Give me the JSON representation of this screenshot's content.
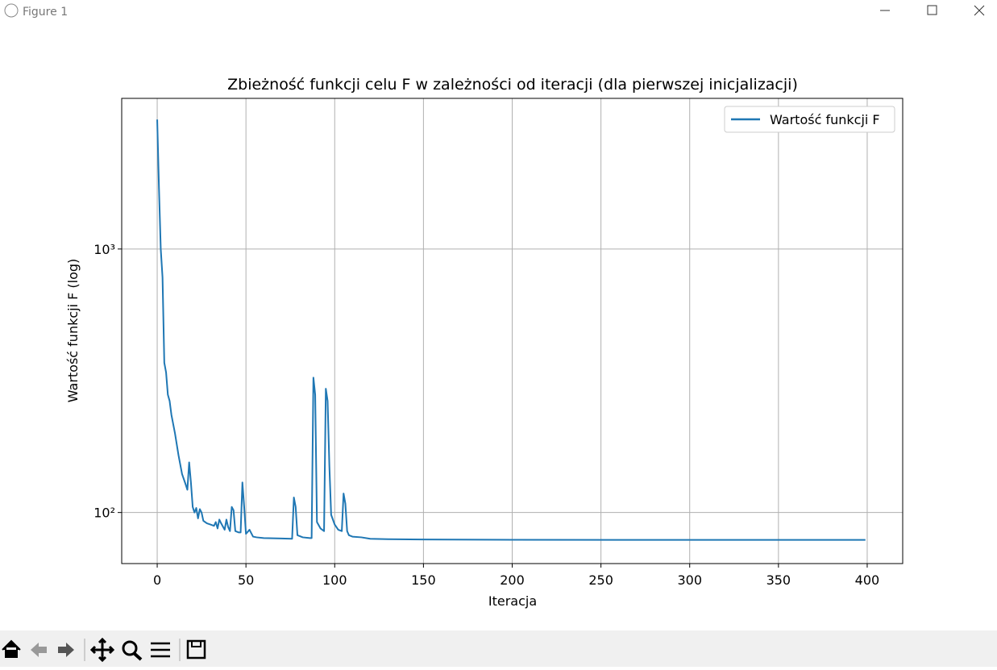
{
  "window": {
    "title": "Figure 1"
  },
  "chart_data": {
    "type": "line",
    "title": "Zbieżność funkcji celu F w zależności od iteracji (dla pierwszej inicjalizacji)",
    "xlabel": "Iteracja",
    "ylabel": "Wartość funkcji F (log)",
    "x": [
      0,
      1,
      2,
      3,
      4,
      5,
      6,
      7,
      8,
      10,
      12,
      14,
      16,
      17,
      18,
      19,
      20,
      21,
      22,
      23,
      24,
      25,
      26,
      28,
      30,
      32,
      33,
      34,
      35,
      36,
      38,
      39,
      40,
      41,
      42,
      43,
      44,
      46,
      47,
      48,
      49,
      50,
      52,
      54,
      56,
      60,
      70,
      76,
      77,
      78,
      79,
      82,
      86,
      87,
      88,
      89,
      90,
      92,
      94,
      95,
      96,
      97,
      98,
      100,
      102,
      104,
      105,
      106,
      107,
      108,
      110,
      115,
      120,
      130,
      150,
      200,
      300,
      399
    ],
    "series": [
      {
        "name": "Wartość funkcji F",
        "color": "#1f77b4",
        "values": [
          3100,
          1700,
          1000,
          780,
          370,
          340,
          280,
          265,
          235,
          200,
          165,
          140,
          128,
          122,
          155,
          130,
          105,
          100,
          104,
          95,
          103,
          100,
          93,
          91,
          90,
          89,
          92,
          87,
          94,
          91,
          86,
          94,
          88,
          85,
          105,
          102,
          85,
          84,
          84,
          130,
          105,
          83,
          86,
          81,
          80.5,
          80,
          79.7,
          79.5,
          114,
          105,
          82,
          80.5,
          80,
          80,
          325,
          280,
          92,
          87,
          85,
          295,
          265,
          150,
          98,
          90,
          86,
          85,
          118,
          108,
          85,
          82,
          81,
          80.5,
          79.5,
          79.2,
          79,
          78.8,
          78.7,
          78.7
        ]
      }
    ],
    "xlim": [
      -20,
      420
    ],
    "xticks": [
      0,
      50,
      100,
      150,
      200,
      250,
      300,
      350,
      400
    ],
    "ylim": [
      64,
      3730
    ],
    "yticks": [
      {
        "value": 100,
        "label": "10²"
      },
      {
        "value": 1000,
        "label": "10³"
      }
    ],
    "yscale": "log",
    "grid": true,
    "legend": "upper right"
  }
}
